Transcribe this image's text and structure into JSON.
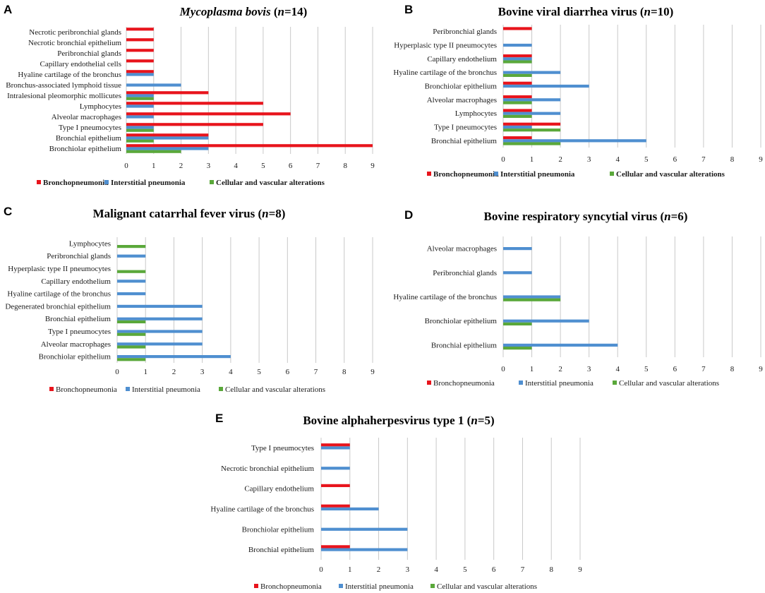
{
  "colors": {
    "bronchopneumonia": "#e8141c",
    "interstitial": "#4f8fd0",
    "cellular": "#5aa83a",
    "grid": "#c8c8c8"
  },
  "chart_data": [
    {
      "id": "A",
      "panel_label": "A",
      "type": "bar",
      "orientation": "horizontal",
      "title_prefix": "Mycoplasma bovis",
      "title_paren_open": " (",
      "title_n": "n",
      "title_eq": "=14",
      "title_paren_close": ")",
      "title_italic_prefix": true,
      "xlim": [
        0,
        9
      ],
      "xticks": [
        "0",
        "1",
        "2",
        "3",
        "4",
        "5",
        "6",
        "7",
        "8",
        "9"
      ],
      "categories": [
        "Necrotic peribronchial glands",
        "Necrotic bronchial epithelium",
        "Peribronchial glands",
        "Capillary endothelial cells",
        "Hyaline cartilage of the bronchus",
        "Bronchus-associated lymphoid tissue",
        "Intralesional pleomorphic mollicutes",
        "Lymphocytes",
        "Alveolar macrophages",
        "Type I pneumocytes",
        "Bronchial epithelium",
        "Bronchiolar epithelium"
      ],
      "series": [
        {
          "name": "Bronchopneumonia",
          "key": "bronchopneumonia",
          "values": [
            1,
            1,
            1,
            1,
            1,
            0,
            3,
            5,
            6,
            5,
            3,
            9
          ]
        },
        {
          "name": "Interstitial pneumonia",
          "key": "interstitial",
          "values": [
            0,
            0,
            0,
            0,
            1,
            2,
            1,
            1,
            1,
            1,
            3,
            3
          ]
        },
        {
          "name": "Cellular and vascular alterations",
          "key": "cellular",
          "values": [
            0,
            0,
            0,
            0,
            0,
            0,
            1,
            0,
            0,
            1,
            1,
            2
          ]
        }
      ],
      "legend_bold": true
    },
    {
      "id": "B",
      "panel_label": "B",
      "type": "bar",
      "orientation": "horizontal",
      "title_prefix": "Bovine viral diarrhea virus",
      "title_paren_open": " (",
      "title_n": "n",
      "title_eq": "=10",
      "title_paren_close": ")",
      "title_italic_prefix": false,
      "xlim": [
        0,
        9
      ],
      "xticks": [
        "0",
        "1",
        "2",
        "3",
        "4",
        "5",
        "6",
        "7",
        "8",
        "9"
      ],
      "categories": [
        "Peribronchial glands",
        "Hyperplasic type II pneumocytes",
        "Capillary endothelium",
        "Hyaline cartilage of the bronchus",
        "Bronchiolar epithelium",
        "Alveolar macrophages",
        "Lymphocytes",
        "Type I pneumocytes",
        "Bronchial epithelium"
      ],
      "series": [
        {
          "name": "Bronchopneumonia",
          "key": "bronchopneumonia",
          "values": [
            1,
            0,
            1,
            0,
            1,
            1,
            1,
            2,
            1
          ]
        },
        {
          "name": "Interstitial pneumonia",
          "key": "interstitial",
          "values": [
            0,
            1,
            1,
            2,
            3,
            2,
            2,
            1,
            5
          ]
        },
        {
          "name": "Cellular and vascular alterations",
          "key": "cellular",
          "values": [
            0,
            0,
            1,
            1,
            0,
            1,
            1,
            2,
            2
          ]
        }
      ],
      "legend_bold": true
    },
    {
      "id": "C",
      "panel_label": "C",
      "type": "bar",
      "orientation": "horizontal",
      "title_prefix": "Malignant catarrhal fever virus",
      "title_paren_open": " (",
      "title_n": "n",
      "title_eq": "=8",
      "title_paren_close": ")",
      "title_italic_prefix": false,
      "xlim": [
        0,
        9
      ],
      "xticks": [
        "0",
        "1",
        "2",
        "3",
        "4",
        "5",
        "6",
        "7",
        "8",
        "9"
      ],
      "categories": [
        "Lymphocytes",
        "Peribronchial glands",
        "Hyperplasic type II pneumocytes",
        "Capillary endothelium",
        "Hyaline cartilage of the bronchus",
        "Degenerated bronchial epithelium",
        "Bronchial epithelium",
        "Type I pneumocytes",
        "Alveolar macrophages",
        "Bronchiolar epithelium"
      ],
      "series": [
        {
          "name": "Bronchopneumonia",
          "key": "bronchopneumonia",
          "values": [
            0,
            0,
            0,
            0,
            0,
            0,
            0,
            0,
            0,
            0
          ]
        },
        {
          "name": "Interstitial pneumonia",
          "key": "interstitial",
          "values": [
            0,
            1,
            0,
            1,
            1,
            3,
            3,
            3,
            3,
            4
          ]
        },
        {
          "name": "Cellular and vascular alterations",
          "key": "cellular",
          "values": [
            1,
            0,
            1,
            0,
            0,
            0,
            1,
            1,
            1,
            1
          ]
        }
      ],
      "legend_bold": false
    },
    {
      "id": "D",
      "panel_label": "D",
      "type": "bar",
      "orientation": "horizontal",
      "title_prefix": "Bovine respiratory syncytial virus",
      "title_paren_open": " (",
      "title_n": "n",
      "title_eq": "=6",
      "title_paren_close": ")",
      "title_italic_prefix": false,
      "xlim": [
        0,
        9
      ],
      "xticks": [
        "0",
        "1",
        "2",
        "3",
        "4",
        "5",
        "6",
        "7",
        "8",
        "9"
      ],
      "categories": [
        "Alveolar macrophages",
        "Peribronchial glands",
        "Hyaline cartilage of the bronchus",
        "Bronchiolar epithelium",
        "Bronchial epithelium"
      ],
      "series": [
        {
          "name": "Bronchopneumonia",
          "key": "bronchopneumonia",
          "values": [
            0,
            0,
            0,
            0,
            0
          ]
        },
        {
          "name": "Interstitial pneumonia",
          "key": "interstitial",
          "values": [
            1,
            1,
            2,
            3,
            4
          ]
        },
        {
          "name": "Cellular and vascular alterations",
          "key": "cellular",
          "values": [
            0,
            0,
            2,
            1,
            1
          ]
        }
      ],
      "legend_bold": false
    },
    {
      "id": "E",
      "panel_label": "E",
      "type": "bar",
      "orientation": "horizontal",
      "title_prefix": "Bovine alphaherpesvirus type 1",
      "title_paren_open": " (",
      "title_n": "n",
      "title_eq": "=5",
      "title_paren_close": ")",
      "title_italic_prefix": false,
      "xlim": [
        0,
        9
      ],
      "xticks": [
        "0",
        "1",
        "2",
        "3",
        "4",
        "5",
        "6",
        "7",
        "8",
        "9"
      ],
      "categories": [
        "Type I pneumocytes",
        "Necrotic bronchial epithelium",
        "Capillary endothelium",
        "Hyaline cartilage of the bronchus",
        "Bronchiolar epithelium",
        "Bronchial epithelium"
      ],
      "series": [
        {
          "name": "Bronchopneumonia",
          "key": "bronchopneumonia",
          "values": [
            1,
            0,
            1,
            1,
            0,
            1
          ]
        },
        {
          "name": "Interstitial pneumonia",
          "key": "interstitial",
          "values": [
            1,
            1,
            0,
            2,
            3,
            3
          ]
        },
        {
          "name": "Cellular and vascular alterations",
          "key": "cellular",
          "values": [
            0,
            0,
            0,
            0,
            0,
            0
          ]
        }
      ],
      "legend_bold": false
    }
  ]
}
